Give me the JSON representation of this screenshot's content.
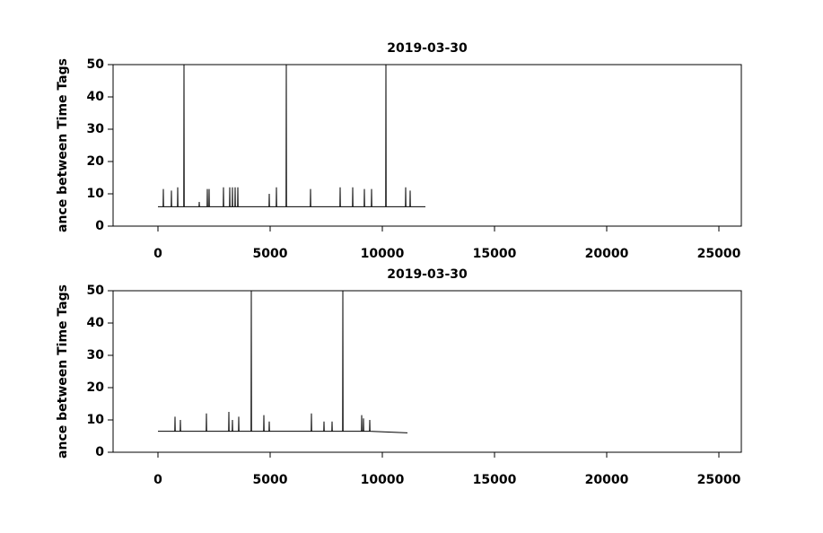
{
  "chart_data": [
    {
      "type": "line",
      "title": "2019-03-30",
      "y_label": "ance between Time Tags",
      "xlim": [
        -2000,
        26000
      ],
      "xticks": [
        0,
        5000,
        10000,
        15000,
        20000,
        25000
      ],
      "ylim": [
        0,
        50
      ],
      "yticks": [
        0,
        10,
        20,
        30,
        40,
        50
      ],
      "series": [
        {
          "color": "#000000",
          "x": [
            0,
            230,
            240,
            250,
            590,
            600,
            610,
            870,
            880,
            890,
            1150,
            1160,
            1170,
            1830,
            1840,
            1850,
            2190,
            2200,
            2210,
            2270,
            2280,
            2290,
            2910,
            2920,
            2930,
            3190,
            3200,
            3210,
            3310,
            3320,
            3330,
            3430,
            3440,
            3450,
            3550,
            3560,
            3570,
            4950,
            4960,
            4970,
            5270,
            5280,
            5290,
            5710,
            5720,
            5730,
            6790,
            6800,
            6810,
            8110,
            8120,
            8130,
            8670,
            8680,
            8690,
            9190,
            9200,
            9210,
            9510,
            9520,
            9530,
            10150,
            10160,
            10170,
            11030,
            11040,
            11050,
            11230,
            11240,
            11250,
            11920
          ],
          "values": [
            6,
            6,
            11.5,
            6,
            6,
            11,
            6,
            6,
            12,
            6,
            6,
            50,
            6,
            6,
            7.5,
            6,
            6,
            11.5,
            6,
            6,
            11.5,
            6,
            6,
            12,
            6,
            6,
            12,
            6,
            6,
            12,
            6,
            6,
            12,
            6,
            6,
            12,
            6,
            6,
            10,
            6,
            6,
            12,
            6,
            6,
            50,
            6,
            6,
            11.5,
            6,
            6,
            12,
            6,
            6,
            12,
            6,
            6,
            11.5,
            6,
            6,
            11.5,
            6,
            6,
            50,
            6,
            6,
            12,
            6,
            6,
            11,
            6,
            6
          ]
        }
      ]
    },
    {
      "type": "line",
      "title": "2019-03-30",
      "y_label": "ance between Time Tags",
      "xlim": [
        -2000,
        26000
      ],
      "xticks": [
        0,
        5000,
        10000,
        15000,
        20000,
        25000
      ],
      "ylim": [
        0,
        50
      ],
      "yticks": [
        0,
        10,
        20,
        30,
        40,
        50
      ],
      "series": [
        {
          "color": "#000000",
          "x": [
            0,
            750,
            760,
            770,
            990,
            1000,
            1010,
            2150,
            2160,
            2170,
            3150,
            3160,
            3170,
            3310,
            3320,
            3330,
            3590,
            3600,
            3610,
            4150,
            4160,
            4170,
            4710,
            4720,
            4730,
            4950,
            4960,
            4970,
            6830,
            6840,
            6850,
            7390,
            7400,
            7410,
            7750,
            7760,
            7770,
            8230,
            8240,
            8250,
            9070,
            9080,
            9090,
            9150,
            9160,
            9170,
            9430,
            9440,
            9450,
            11120
          ],
          "values": [
            6.5,
            6.5,
            11,
            6.5,
            6.5,
            10,
            6.5,
            6.5,
            12,
            6.5,
            6.5,
            12.5,
            6.5,
            6.5,
            10,
            6.5,
            6.5,
            11,
            6.5,
            6.5,
            50,
            6.5,
            6.5,
            11.5,
            6.5,
            6.5,
            9.5,
            6.5,
            6.5,
            12,
            6.5,
            6.5,
            9.5,
            6.5,
            6.5,
            9.5,
            6.5,
            6.5,
            50,
            6.5,
            6.5,
            11.5,
            6.5,
            6.5,
            10.5,
            6.5,
            6.5,
            10,
            6.5,
            6
          ]
        }
      ]
    }
  ]
}
